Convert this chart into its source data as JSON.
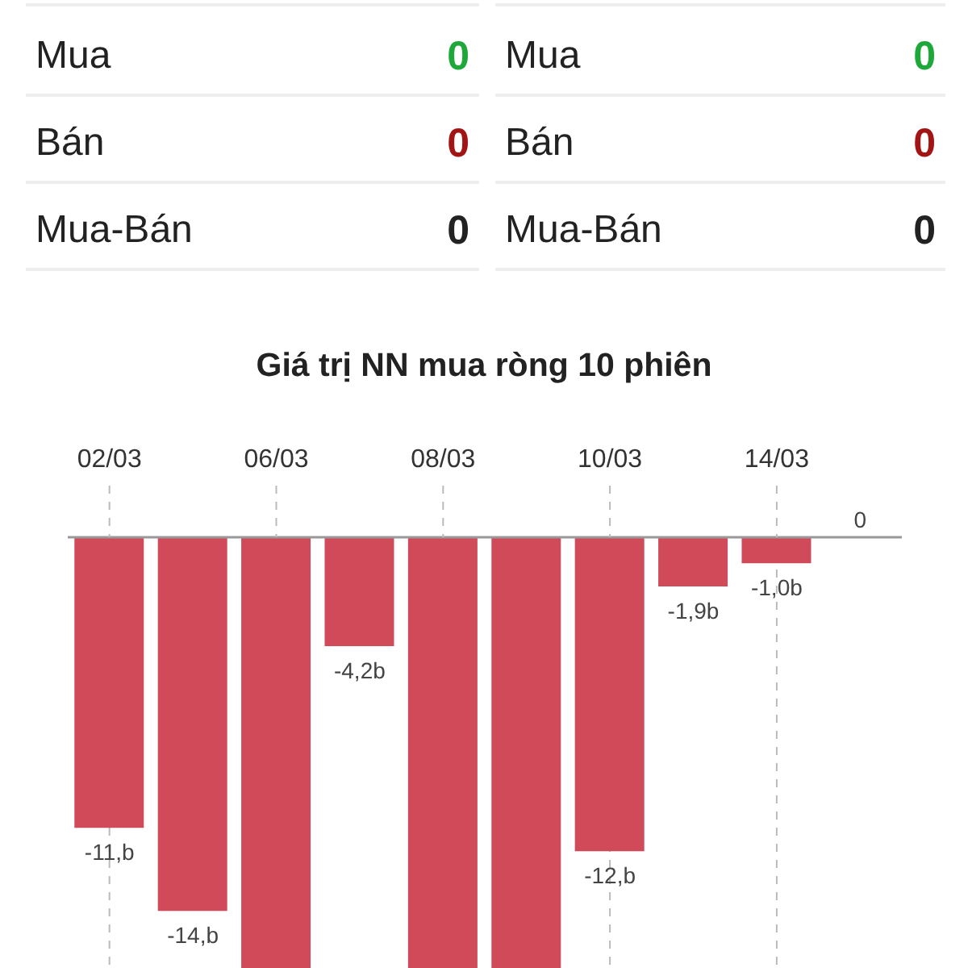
{
  "chart_data": [
    {
      "type": "other",
      "categories": [
        "Mua",
        "Bán",
        "Mua-Bán"
      ],
      "colors": [
        "#1fa83a",
        "#a31515",
        "#222222"
      ],
      "data_labels": true,
      "series": [
        {
          "values": [
            0,
            0,
            0
          ]
        },
        {
          "values": [
            0,
            0,
            0
          ]
        }
      ]
    },
    {
      "type": "bar",
      "title": "Giá trị NN mua ròng 10 phiên",
      "categories": [
        "02/03",
        null,
        "06/03",
        null,
        "08/03",
        null,
        "10/03",
        null,
        "14/03",
        null
      ],
      "values": [
        -11.2,
        -14.4,
        -16.6,
        -4.2,
        -16.6,
        -16.6,
        -12.1,
        -1.9,
        -1.0,
        0
      ],
      "color": "#d04a5a",
      "value_labels": [
        "-11,b",
        "-14,b",
        null,
        "-4,2b",
        null,
        null,
        "-12,b",
        "-1,9b",
        "-1,0b",
        "0"
      ],
      "grid": "x",
      "tick_labels": "x"
    }
  ]
}
